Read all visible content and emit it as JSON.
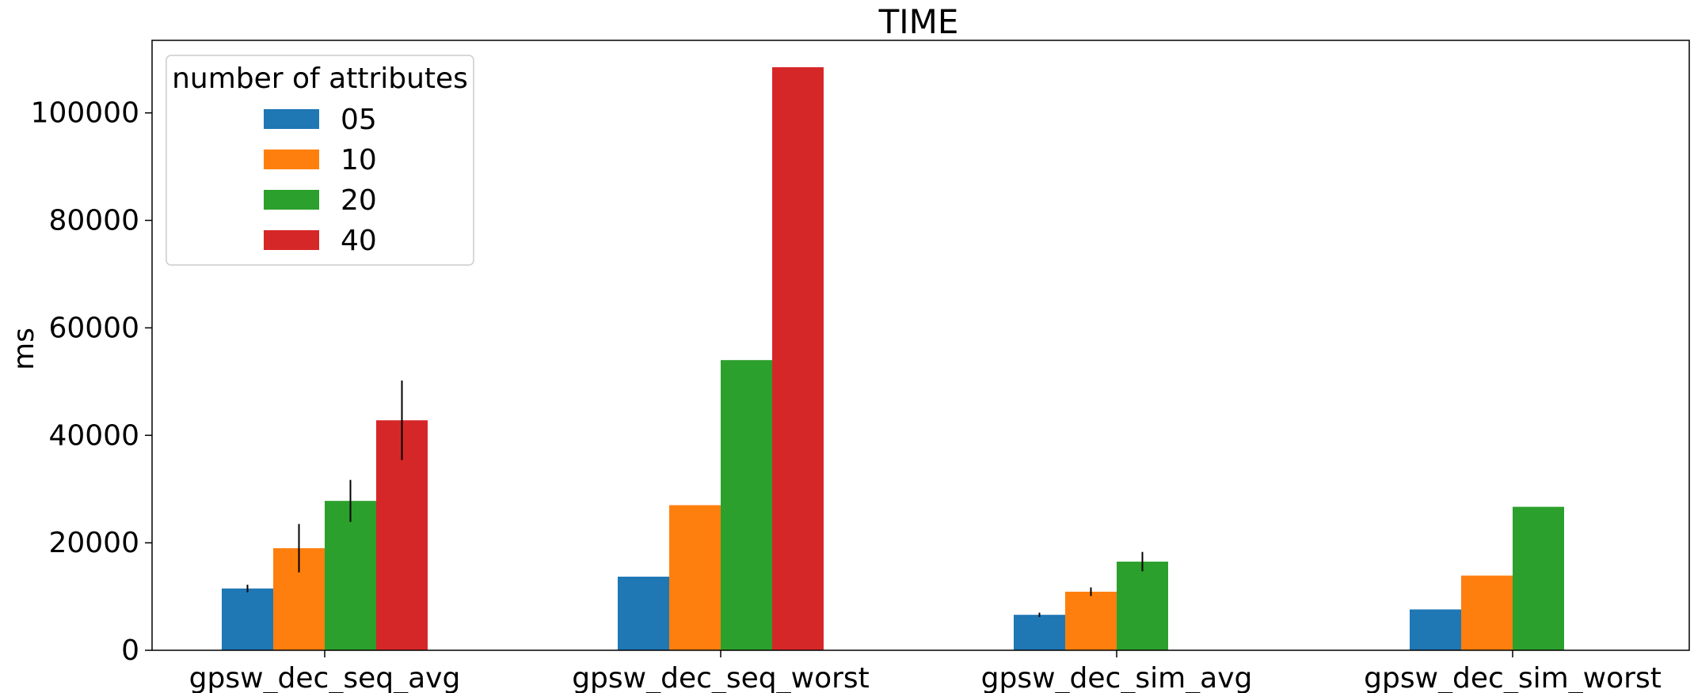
{
  "chart_data": {
    "type": "bar",
    "title": "TIME",
    "xlabel": "",
    "ylabel": "ms",
    "ylim": [
      0,
      113500
    ],
    "yticks": [
      0,
      20000,
      40000,
      60000,
      80000,
      100000
    ],
    "ytick_labels": [
      "0",
      "20000",
      "40000",
      "60000",
      "80000",
      "100000"
    ],
    "grid": false,
    "categories": [
      "gpsw_dec_seq_avg",
      "gpsw_dec_seq_worst",
      "gpsw_dec_sim_avg",
      "gpsw_dec_sim_worst"
    ],
    "legend": {
      "title": "number of attributes",
      "placement": "top-left"
    },
    "series": [
      {
        "name": "05",
        "color": "#1f77b4",
        "values": [
          11500,
          13700,
          6600,
          7600
        ],
        "errors": [
          700,
          null,
          400,
          null
        ]
      },
      {
        "name": "10",
        "color": "#ff7f0e",
        "values": [
          19000,
          27000,
          10900,
          13900
        ],
        "errors": [
          4500,
          null,
          800,
          null
        ]
      },
      {
        "name": "20",
        "color": "#2ca02c",
        "values": [
          27800,
          54000,
          16500,
          26700
        ],
        "errors": [
          3900,
          null,
          1800,
          null
        ]
      },
      {
        "name": "40",
        "color": "#d62728",
        "values": [
          42800,
          108500,
          null,
          null
        ],
        "errors": [
          7400,
          null,
          null,
          null
        ]
      }
    ]
  }
}
